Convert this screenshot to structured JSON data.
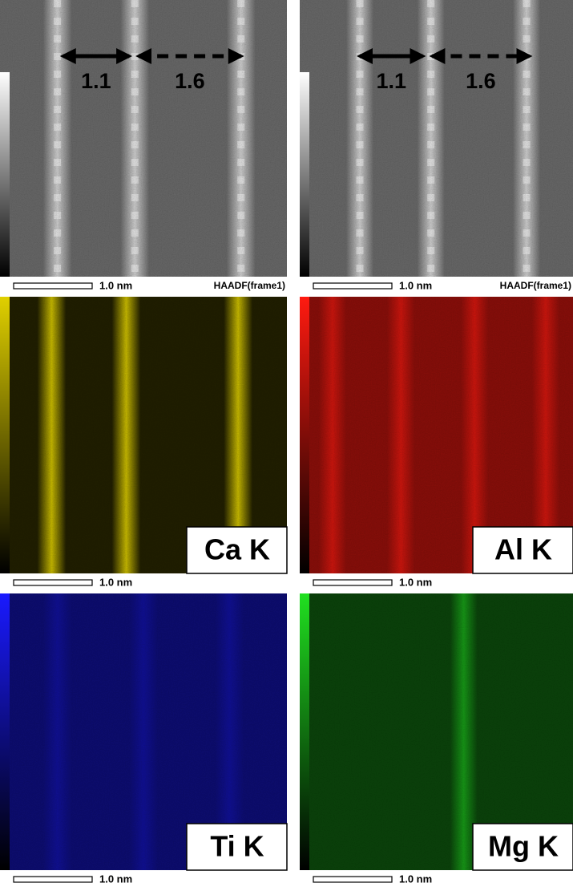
{
  "panels": [
    {
      "type": "haadf",
      "color": "#e6e6e6",
      "annotations": [
        "1.1",
        "1.6"
      ],
      "scale_bar": "1.0 nm",
      "caption": "HAADF(frame1)"
    },
    {
      "type": "haadf",
      "color": "#e6e6e6",
      "annotations": [
        "1.1",
        "1.6"
      ],
      "scale_bar": "1.0 nm",
      "caption": "HAADF(frame1)"
    },
    {
      "type": "map",
      "color": "#e0d000",
      "element": "Ca K",
      "scale_bar": "1.0 nm"
    },
    {
      "type": "map",
      "color": "#ff1a10",
      "element": "Al K",
      "scale_bar": "1.0 nm"
    },
    {
      "type": "map",
      "color": "#1a1aff",
      "element": "Ti K",
      "scale_bar": "1.0 nm"
    },
    {
      "type": "map",
      "color": "#20e020",
      "element": "Mg K",
      "scale_bar": "1.0 nm"
    }
  ]
}
